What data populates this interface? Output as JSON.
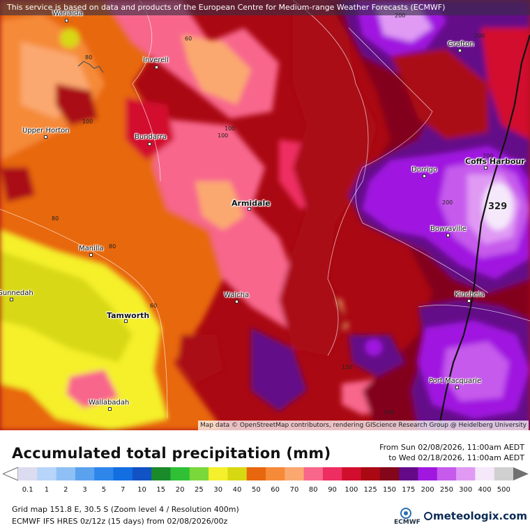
{
  "disclaimer": "This service is based on data and products of the European Centre for Medium-range Weather Forecasts (ECMWF)",
  "attribution": "Map data © OpenStreetMap contributors, rendering GIScience Research Group @ Heidelberg University",
  "cities": [
    {
      "name": "Warialda"
    },
    {
      "name": "Inverell"
    },
    {
      "name": "Grafton"
    },
    {
      "name": "Upper Horton"
    },
    {
      "name": "Bundarra"
    },
    {
      "name": "Dorrigo"
    },
    {
      "name": "Coffs Harbour"
    },
    {
      "name": "Armidale"
    },
    {
      "name": "Bowraville"
    },
    {
      "name": "Manilla"
    },
    {
      "name": "Gunnedah"
    },
    {
      "name": "Walcha"
    },
    {
      "name": "Kinchela"
    },
    {
      "name": "Tamworth"
    },
    {
      "name": "Port Macquarie"
    },
    {
      "name": "Wallabadah"
    }
  ],
  "max_value": "329",
  "contour_labels": [
    "200",
    "200",
    "80",
    "60",
    "100",
    "100",
    "100",
    "200",
    "200",
    "80",
    "80",
    "60",
    "150",
    "100"
  ],
  "legend": {
    "title": "Accumulated total precipitation (mm)",
    "from_line": "From Sun 02/08/2026, 11:00am AEDT",
    "to_line": "to Wed 02/18/2026, 11:00am AEDT",
    "ticks": [
      "0.1",
      "1",
      "2",
      "3",
      "5",
      "7",
      "10",
      "15",
      "20",
      "25",
      "30",
      "40",
      "50",
      "60",
      "70",
      "80",
      "90",
      "100",
      "125",
      "150",
      "175",
      "200",
      "250",
      "300",
      "400",
      "500"
    ],
    "colors": [
      "#dcdcf0",
      "#b7d4fa",
      "#8fc0f5",
      "#5aa2ee",
      "#2e86eb",
      "#136ee2",
      "#1152c4",
      "#1a8a2a",
      "#2fc036",
      "#7ad83a",
      "#f5f02c",
      "#d8d812",
      "#e8670e",
      "#f58a38",
      "#fba870",
      "#f8668c",
      "#ee2e60",
      "#d20e2e",
      "#aa0812",
      "#83061a",
      "#640a88",
      "#a018e0",
      "#c65aec",
      "#e09af4",
      "#f5e8fb",
      "#d0d0d0"
    ]
  },
  "info": {
    "grid_line": "Grid map 151.8 E, 30.5 S (Zoom level 4 / Resolution 400m)",
    "model_line": "ECMWF IFS HRES 0z/12z (15 days) from  02/08/2026/00z"
  },
  "logos": {
    "ecmwf": "ECMWF",
    "meteologix": "meteologix.com"
  }
}
